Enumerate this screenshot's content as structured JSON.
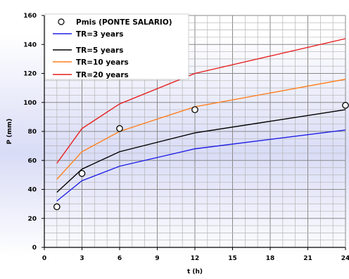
{
  "chart_data": {
    "type": "line",
    "xlabel": "t (h)",
    "ylabel": "P (mm)",
    "xlim": [
      0,
      24
    ],
    "ylim": [
      0,
      160
    ],
    "xticks": [
      "0",
      "3",
      "6",
      "9",
      "12",
      "15",
      "18",
      "21",
      "24"
    ],
    "yticks": [
      "0",
      "20",
      "40",
      "60",
      "80",
      "100",
      "120",
      "140",
      "160"
    ],
    "grid": true,
    "legend_position": "top-left",
    "points_series": {
      "name": "Pmis (PONTE SALARIO)",
      "marker": "circle",
      "x": [
        1,
        3,
        6,
        12,
        24
      ],
      "y": [
        28,
        51,
        82,
        95,
        98
      ]
    },
    "series": [
      {
        "name": "TR=3 years",
        "color": "#1f1fe6",
        "x": [
          1,
          3,
          6,
          12,
          24
        ],
        "y": [
          32,
          46,
          56,
          68,
          81
        ]
      },
      {
        "name": "TR=5 years",
        "color": "#000000",
        "x": [
          1,
          3,
          6,
          12,
          24
        ],
        "y": [
          38,
          54,
          66,
          79,
          95
        ]
      },
      {
        "name": "TR=10 years",
        "color": "#ff7f1e",
        "x": [
          1,
          3,
          6,
          12,
          24
        ],
        "y": [
          47,
          66,
          80,
          97,
          116
        ]
      },
      {
        "name": "TR=20 years",
        "color": "#e81c1c",
        "x": [
          1,
          3,
          6,
          12,
          24
        ],
        "y": [
          58,
          82,
          99,
          120,
          144
        ]
      }
    ]
  }
}
